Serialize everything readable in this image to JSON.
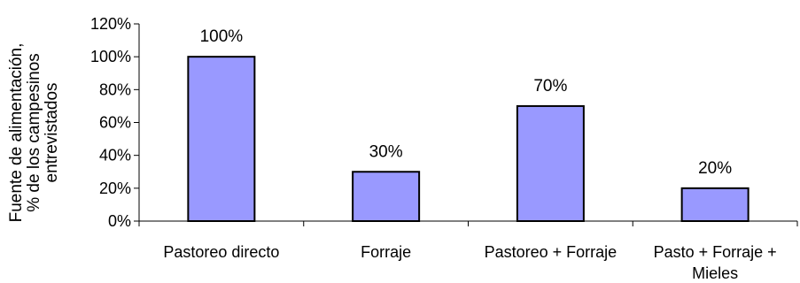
{
  "chart_data": {
    "type": "bar",
    "categories": [
      "Pastoreo directo",
      "Forraje",
      "Pastoreo + Forraje",
      "Pasto + Forraje + Mieles"
    ],
    "category_lines": [
      [
        "Pastoreo directo"
      ],
      [
        "Forraje"
      ],
      [
        "Pastoreo + Forraje"
      ],
      [
        "Pasto + Forraje +",
        "Mieles"
      ]
    ],
    "values": [
      100,
      30,
      70,
      20
    ],
    "data_labels": [
      "100%",
      "30%",
      "70%",
      "20%"
    ],
    "yticks": [
      "0%",
      "20%",
      "40%",
      "60%",
      "80%",
      "100%",
      "120%"
    ],
    "ylim": [
      0,
      120
    ],
    "ylabel_lines": [
      "Fuente de alimentación,",
      "% de los campesinos",
      "entrevistados"
    ],
    "xlabel": "",
    "title": "",
    "legend": "none",
    "grid": false,
    "colors": {
      "bar_fill": "#9999ff",
      "bar_stroke": "#000000",
      "axis": "#000000"
    }
  }
}
